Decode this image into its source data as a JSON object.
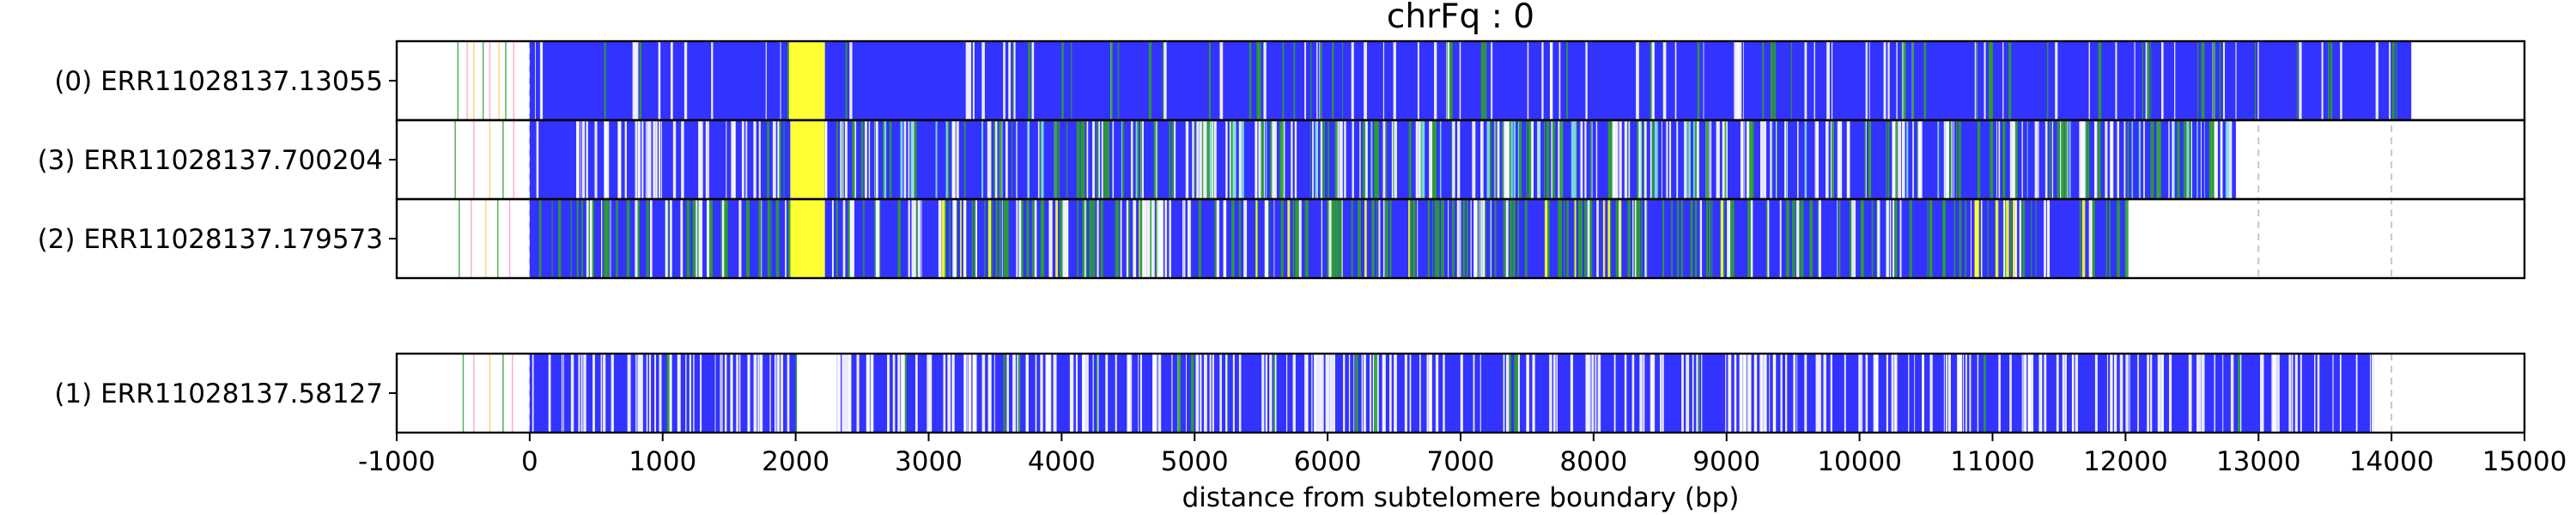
{
  "chart_data": {
    "type": "bar",
    "title": "chrFq : 0",
    "xlabel": "distance from subtelomere boundary (bp)",
    "xlim": [
      -1000,
      15000
    ],
    "xticks": [
      -1000,
      0,
      1000,
      2000,
      3000,
      4000,
      5000,
      6000,
      7000,
      8000,
      9000,
      10000,
      11000,
      12000,
      13000,
      14000,
      15000
    ],
    "xtick_labels": [
      "-1000",
      "0",
      "1000",
      "2000",
      "3000",
      "4000",
      "5000",
      "6000",
      "7000",
      "8000",
      "9000",
      "10000",
      "11000",
      "12000",
      "13000",
      "14000",
      "15000"
    ],
    "grid": "vertical dashed at x ticks",
    "colors": {
      "blue": "#3333ff",
      "green": "#2ca02c",
      "yellow": "#ffff33",
      "cyan": "#80e0e0",
      "white": "#ffffff",
      "pink": "#ff99cc",
      "orange": "#ffcc66",
      "grid": "#c8c8c8",
      "frame": "#000000"
    },
    "groups": [
      {
        "tracks": [
          {
            "label": "(0) ERR11028137.13055",
            "subtelomere_marks": [
              -540,
              -470,
              -420,
              -350,
              -300,
              -230,
              -180,
              -120
            ],
            "segments": [
              {
                "start": 0,
                "end": 1950,
                "color": "blue",
                "density": "low-white"
              },
              {
                "start": 1950,
                "end": 2220,
                "color": "yellow"
              },
              {
                "start": 2220,
                "end": 14150,
                "color": "blue",
                "density": "low-white-green"
              }
            ],
            "end": 14150
          },
          {
            "label": "(3) ERR11028137.700204",
            "subtelomere_marks": [
              -560,
              -420,
              -300,
              -200,
              -120
            ],
            "segments": [
              {
                "start": 0,
                "end": 1960,
                "color": "blue",
                "density": "high-white"
              },
              {
                "start": 1960,
                "end": 2220,
                "color": "yellow"
              },
              {
                "start": 2220,
                "end": 12830,
                "color": "blue",
                "density": "high-white-green-cyan"
              }
            ],
            "end": 12830
          },
          {
            "label": "(2) ERR11028137.179573",
            "subtelomere_marks": [
              -530,
              -440,
              -330,
              -240,
              -150
            ],
            "segments": [
              {
                "start": 0,
                "end": 1960,
                "color": "blue",
                "density": "high-green"
              },
              {
                "start": 1960,
                "end": 2220,
                "color": "yellow"
              },
              {
                "start": 2220,
                "end": 12000,
                "color": "blue",
                "density": "high-green-white-yellow"
              }
            ],
            "end": 12000
          }
        ]
      },
      {
        "tracks": [
          {
            "label": "(1) ERR11028137.58127",
            "subtelomere_marks": [
              -500,
              -420,
              -300,
              -200,
              -130
            ],
            "segments": [
              {
                "start": 0,
                "end": 2010,
                "color": "blue",
                "density": "high-white"
              },
              {
                "start": 2010,
                "end": 2310,
                "color": "white"
              },
              {
                "start": 2310,
                "end": 13870,
                "color": "blue",
                "density": "high-white"
              }
            ],
            "end": 13870
          }
        ]
      }
    ]
  }
}
